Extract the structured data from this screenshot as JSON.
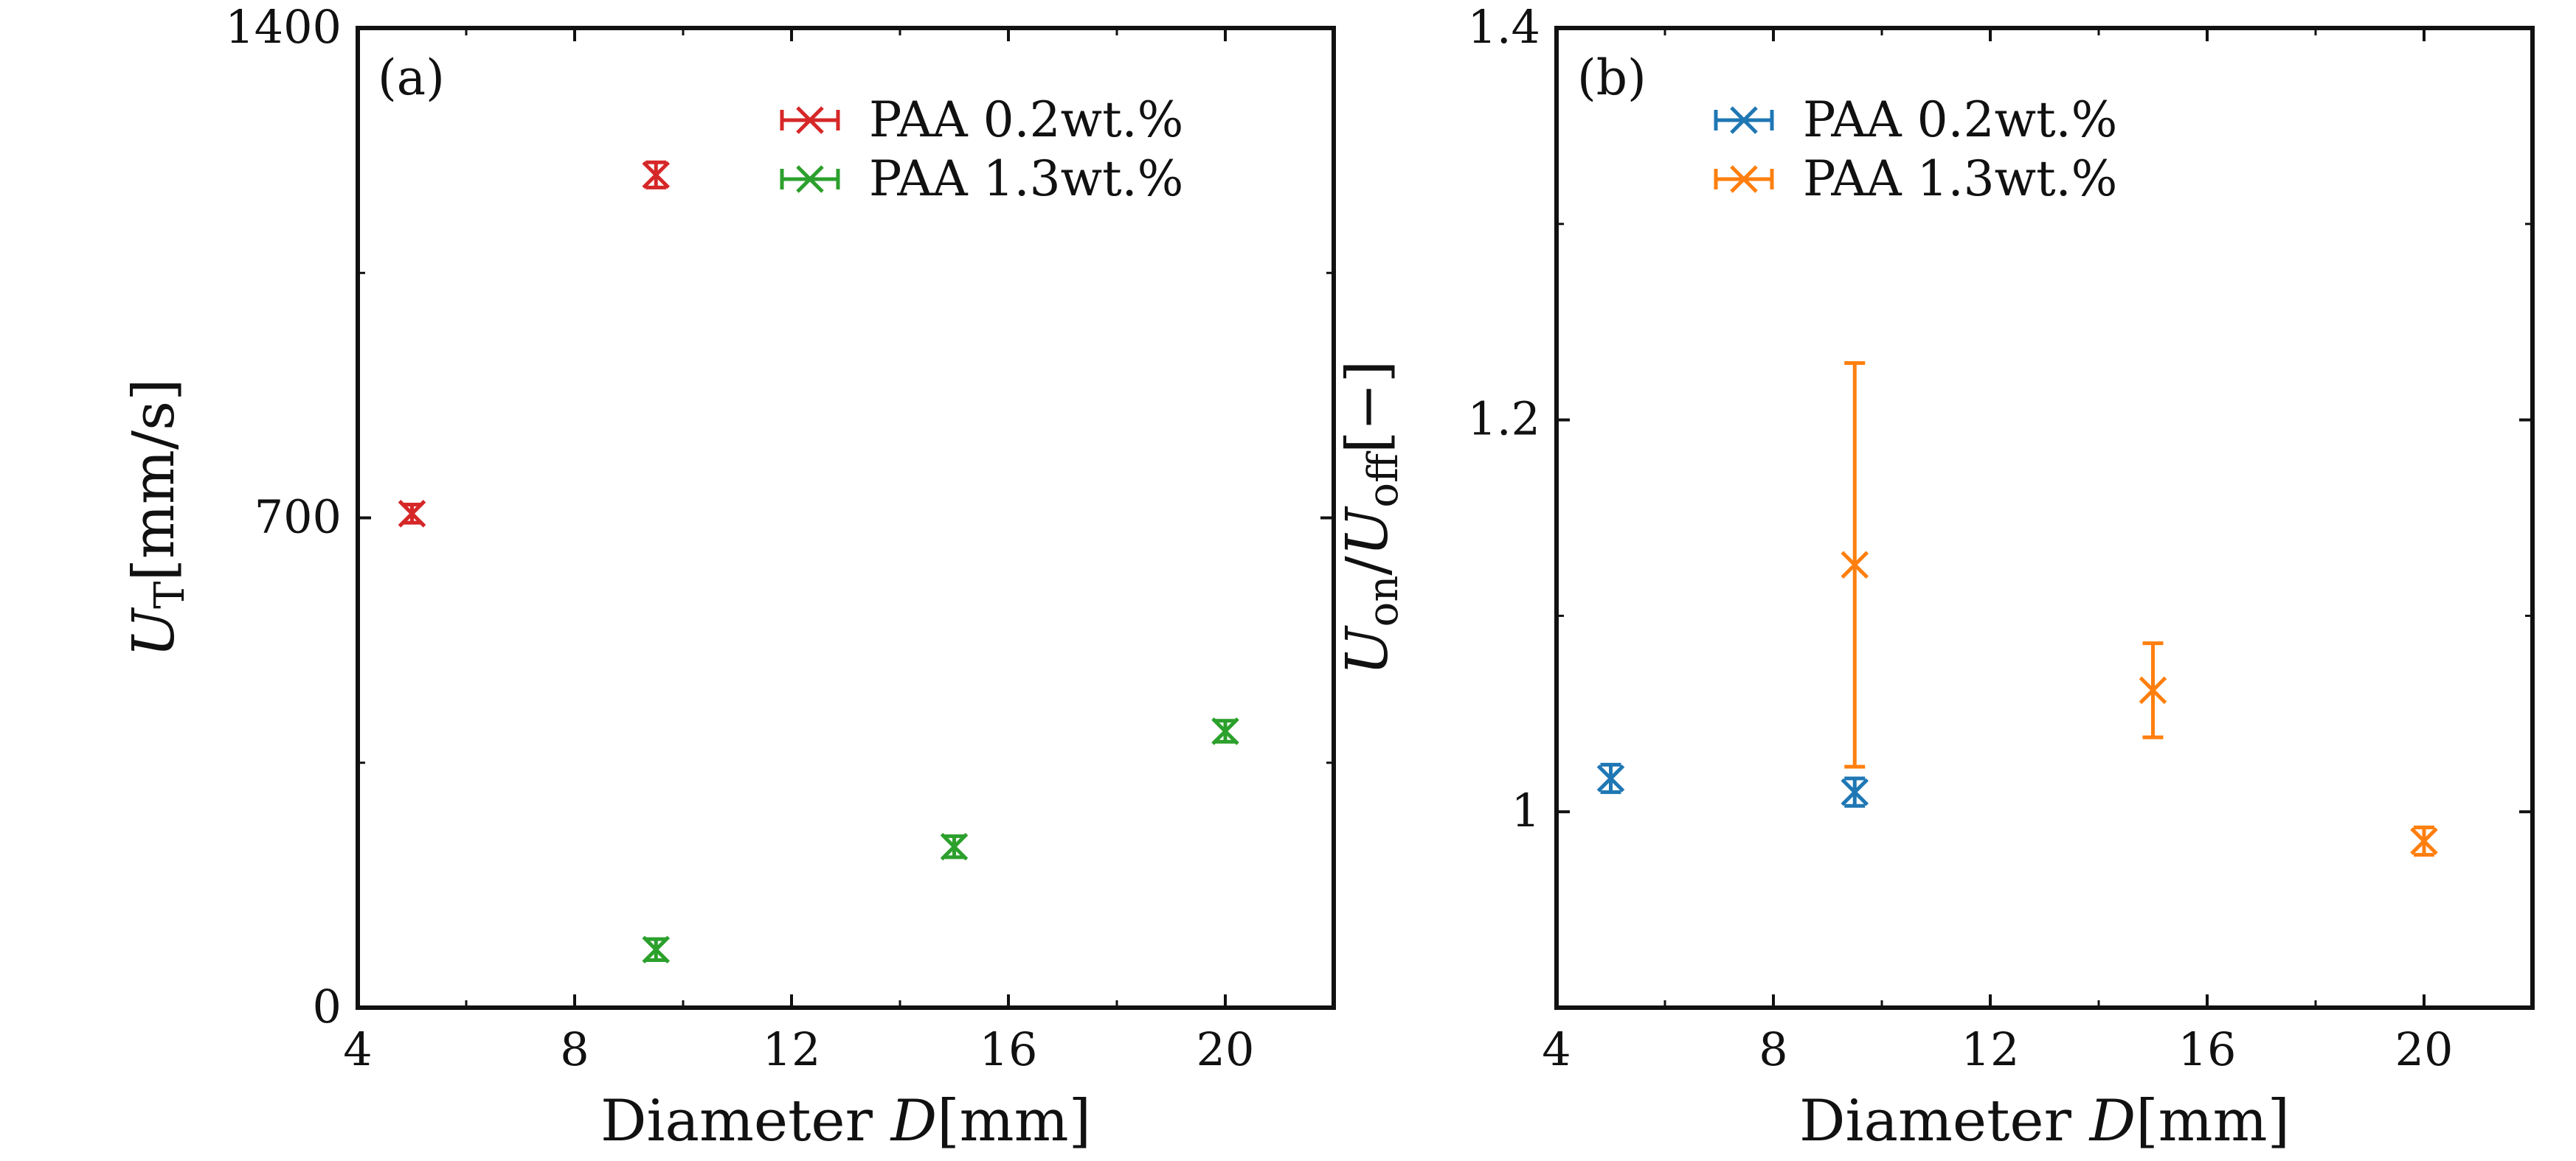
{
  "colors": {
    "paa_02_a": "#d62728",
    "paa_13_a": "#2ca02c",
    "paa_02_b": "#1f77b4",
    "paa_13_b": "#ff7f0e",
    "axis": "#111111"
  },
  "chart_data": [
    {
      "type": "scatter",
      "panel_label": "(a)",
      "xlabel": {
        "text": "Diameter ",
        "italic": "D",
        "unit": "[mm]"
      },
      "ylabel": {
        "italic": "U",
        "subscript": "T",
        "unit": "[mm/s]"
      },
      "xlim": [
        4,
        22
      ],
      "ylim": [
        0,
        1400
      ],
      "xticks": [
        4,
        8,
        12,
        16,
        20
      ],
      "xtick_labels": [
        "4",
        "8",
        "12",
        "16",
        "20"
      ],
      "yticks": [
        0,
        700,
        1400
      ],
      "ytick_labels": [
        "0",
        "700",
        "1400"
      ],
      "grid": false,
      "legend_position": "top-right",
      "series": [
        {
          "name": "PAA 0.2wt.%",
          "color_key": "paa_02_a",
          "marker": "x",
          "points": [
            {
              "x": 5,
              "y": 706,
              "yerr": 13
            },
            {
              "x": 9.5,
              "y": 1190,
              "yerr": 18
            }
          ]
        },
        {
          "name": "PAA 1.3wt.%",
          "color_key": "paa_13_a",
          "marker": "x",
          "points": [
            {
              "x": 9.5,
              "y": 83,
              "yerr": 15
            },
            {
              "x": 15,
              "y": 230,
              "yerr": 15
            },
            {
              "x": 20,
              "y": 395,
              "yerr": 15
            }
          ]
        }
      ]
    },
    {
      "type": "scatter",
      "panel_label": "(b)",
      "xlabel": {
        "text": "Diameter ",
        "italic": "D",
        "unit": "[mm]"
      },
      "ylabel": {
        "italic1": "U",
        "sub1": "on",
        "slash": "/",
        "italic2": "U",
        "sub2": "off",
        "unit": "[−]"
      },
      "xlim": [
        4,
        22
      ],
      "ylim": [
        0.9,
        1.4
      ],
      "xticks": [
        4,
        8,
        12,
        16,
        20
      ],
      "xtick_labels": [
        "4",
        "8",
        "12",
        "16",
        "20"
      ],
      "yticks": [
        1.0,
        1.2,
        1.4
      ],
      "ytick_labels": [
        "1",
        "1.2",
        "1.4"
      ],
      "grid": false,
      "legend_position": "top-left",
      "series": [
        {
          "name": "PAA 0.2wt.%",
          "color_key": "paa_02_b",
          "marker": "x",
          "points": [
            {
              "x": 5,
              "y": 1.017,
              "yerr": 0.007
            },
            {
              "x": 9.5,
              "y": 1.01,
              "yerr": 0.007
            }
          ]
        },
        {
          "name": "PAA 1.3wt.%",
          "color_key": "paa_13_b",
          "marker": "x",
          "points": [
            {
              "x": 9.5,
              "y": 1.126,
              "yerr": 0.103
            },
            {
              "x": 15,
              "y": 1.062,
              "yerr": 0.024
            },
            {
              "x": 20,
              "y": 0.985,
              "yerr": 0.007
            }
          ]
        }
      ]
    }
  ]
}
